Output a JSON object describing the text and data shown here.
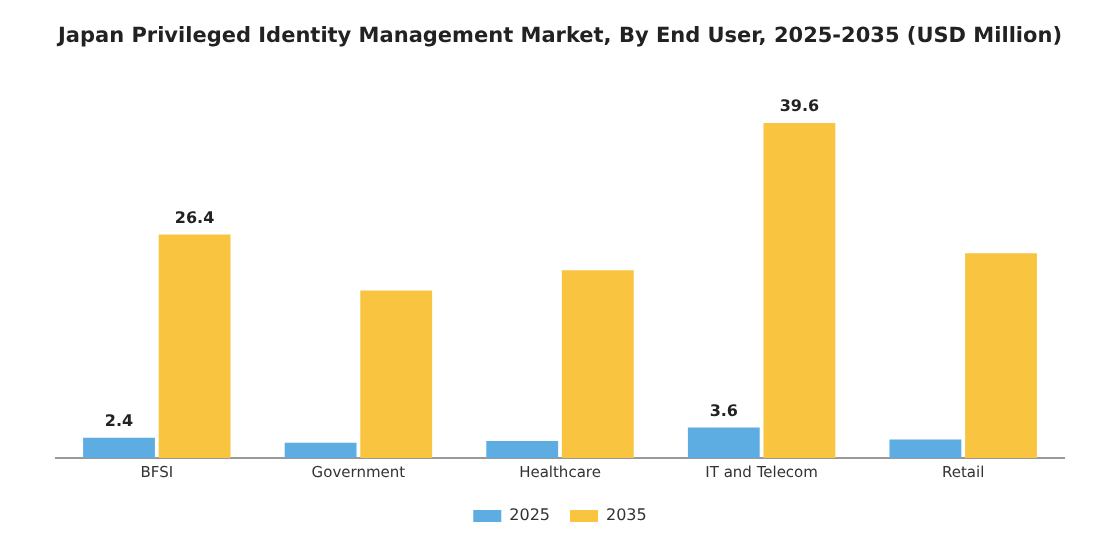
{
  "chart_data": {
    "type": "bar",
    "title": "Japan Privileged Identity Management Market, By End User, 2025-2035 (USD Million)",
    "categories": [
      "BFSI",
      "Government",
      "Healthcare",
      "IT and Telecom",
      "Retail"
    ],
    "series": [
      {
        "name": "2025",
        "color": "#5dade2",
        "values": [
          2.4,
          1.8,
          2.0,
          3.6,
          2.2
        ],
        "value_labels": [
          "2.4",
          null,
          null,
          "3.6",
          null
        ]
      },
      {
        "name": "2035",
        "color": "#f9c440",
        "values": [
          26.4,
          19.8,
          22.2,
          39.6,
          24.2
        ],
        "value_labels": [
          "26.4",
          null,
          null,
          "39.6",
          null
        ]
      }
    ],
    "legend": "bottom",
    "grid": false,
    "tick_labels": "x"
  }
}
